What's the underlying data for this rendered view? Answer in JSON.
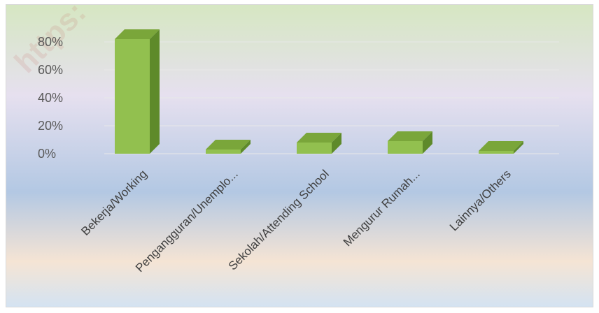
{
  "chart_data": {
    "type": "bar",
    "style": "3d-column",
    "categories": [
      "Bekerja/Working",
      "Pengangguran/Unemplo...",
      "Sekolah/Attending School",
      "Mengurur Rumah...",
      "Lainnya/Others"
    ],
    "values": [
      0.82,
      0.03,
      0.08,
      0.09,
      0.02
    ],
    "y_ticks": [
      "0%",
      "20%",
      "40%",
      "60%",
      "80%"
    ],
    "ylim": [
      0,
      0.9
    ],
    "grid": true,
    "legend": "none",
    "title": "",
    "xlabel": "",
    "ylabel": "",
    "colors": {
      "bar_front": "#92c04f",
      "bar_top": "#7aa63a",
      "bar_side": "#5e8a2a",
      "gridline": "#e8e8e8",
      "bg_top": "#d6e7c2",
      "bg_mid_light": "#e6e0ef",
      "bg_mid": "#b3c8e3",
      "bg_low": "#f5e4d4",
      "bg_bottom": "#d4e3f2"
    }
  },
  "watermark": "https:"
}
